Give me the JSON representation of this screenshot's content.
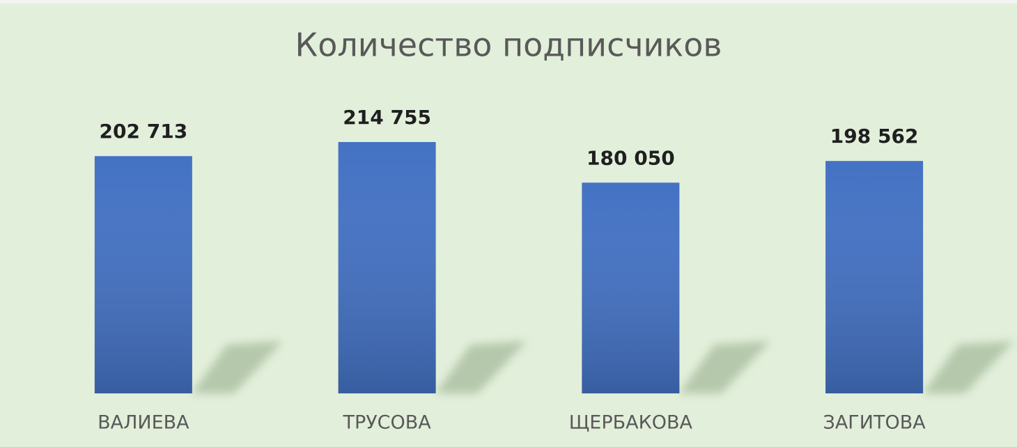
{
  "chart_data": {
    "type": "bar",
    "title": "Количество подписчиков",
    "categories": [
      "ВАЛИЕВА",
      "ТРУСОВА",
      "ЩЕРБАКОВА",
      "ЗАГИТОВА"
    ],
    "values": [
      202713,
      214755,
      180050,
      198562
    ],
    "value_labels": [
      "202 713",
      "214 755",
      "180 050",
      "198 562"
    ],
    "color": "#4472c4"
  }
}
